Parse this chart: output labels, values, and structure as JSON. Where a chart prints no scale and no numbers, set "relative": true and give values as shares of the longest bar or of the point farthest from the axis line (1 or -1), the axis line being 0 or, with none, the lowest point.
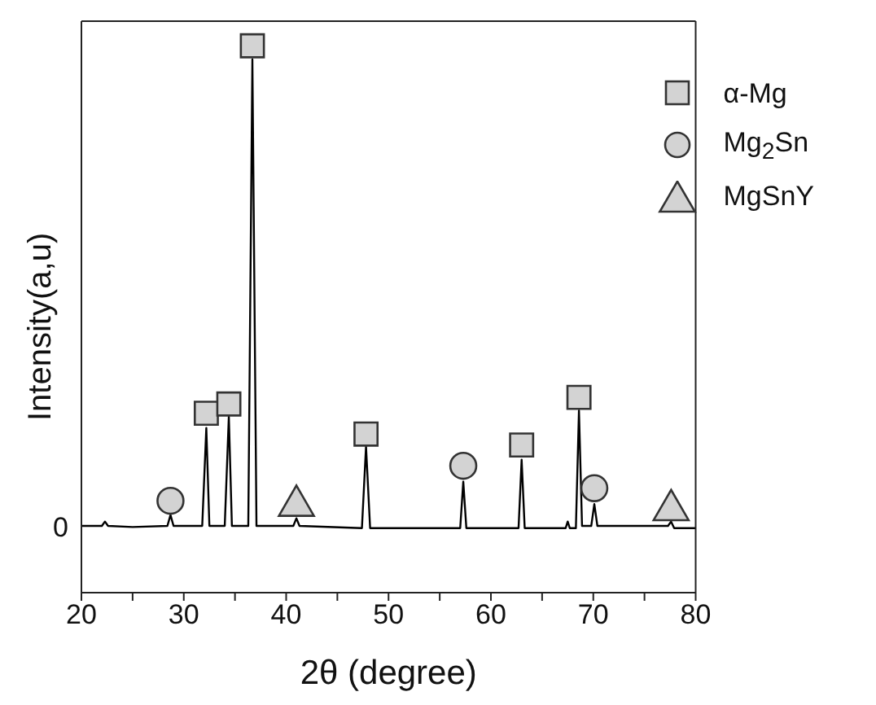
{
  "chart_data": {
    "type": "line",
    "relative": true,
    "xlabel": "2θ (degree)",
    "ylabel": "Intensity(a,u)",
    "xlim": [
      20,
      80
    ],
    "xticks": [
      20,
      {
        "value": 25,
        "label": null
      },
      30,
      {
        "value": 35,
        "label": null
      },
      40,
      {
        "value": 45,
        "label": null
      },
      50,
      {
        "value": 55,
        "label": null
      },
      60,
      {
        "value": 65,
        "label": null
      },
      70,
      {
        "value": 75,
        "label": null
      },
      80
    ],
    "annotations": [
      {
        "text": "0",
        "x": 20,
        "y": 0.12
      }
    ],
    "legend": "top right",
    "series": [
      {
        "color": "#000000",
        "marker": "none",
        "x": [
          20,
          22,
          22.3,
          22.6,
          25,
          28.4,
          28.7,
          29.0,
          31.8,
          32.2,
          32.5,
          34.0,
          34.4,
          34.7,
          36.3,
          36.7,
          37.1,
          40.7,
          41,
          41.3,
          47.4,
          47.8,
          48.2,
          57.0,
          57.3,
          57.6,
          62.7,
          63.0,
          63.3,
          67.3,
          67.5,
          67.7,
          68.3,
          68.6,
          68.9,
          69.8,
          70.1,
          70.4,
          77.3,
          77.6,
          77.9,
          80
        ],
        "values": [
          0.122,
          0.122,
          0.13,
          0.122,
          0.12,
          0.122,
          0.142,
          0.122,
          0.122,
          0.301,
          0.122,
          0.122,
          0.322,
          0.122,
          0.122,
          0.975,
          0.122,
          0.122,
          0.136,
          0.122,
          0.118,
          0.267,
          0.118,
          0.118,
          0.203,
          0.118,
          0.118,
          0.243,
          0.118,
          0.118,
          0.13,
          0.118,
          0.118,
          0.333,
          0.122,
          0.122,
          0.162,
          0.122,
          0.122,
          0.13,
          0.118,
          0.118
        ]
      },
      {
        "type": "scatter",
        "name": "α-Mg",
        "color": "#d3d3d3",
        "marker": "square",
        "x": [
          32.2,
          34.4,
          36.7,
          47.8,
          63.0,
          68.6
        ],
        "values": [
          0.328,
          0.345,
          1.0,
          0.29,
          0.27,
          0.357
        ]
      },
      {
        "type": "scatter",
        "name": "Mg$_{2}$Sn",
        "color": "#d3d3d3",
        "marker": "circle",
        "x": [
          28.7,
          57.3,
          70.1
        ],
        "values": [
          0.168,
          0.232,
          0.191
        ]
      },
      {
        "type": "scatter",
        "name": "MgSnY",
        "color": "#d3d3d3",
        "marker": "triangle",
        "x": [
          41,
          77.6
        ],
        "values": [
          0.159,
          0.151
        ]
      }
    ]
  }
}
